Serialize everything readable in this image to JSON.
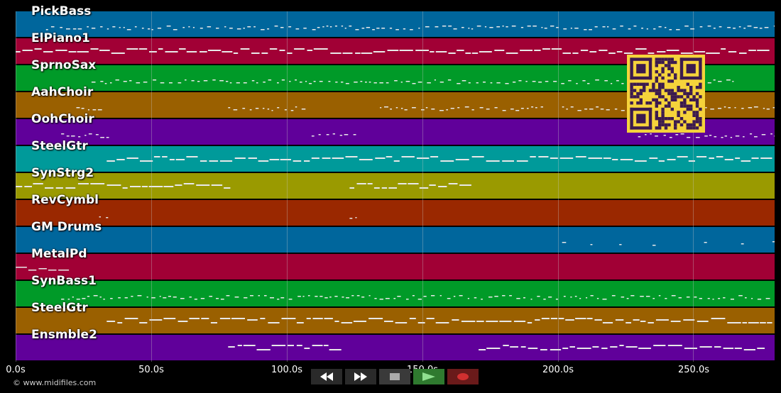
{
  "tracks": [
    {
      "name": "PickBass",
      "color": "#00669c"
    },
    {
      "name": "ElPiano1",
      "color": "#a10035"
    },
    {
      "name": "SprnoSax",
      "color": "#009a28"
    },
    {
      "name": "AahChoir",
      "color": "#9a6000"
    },
    {
      "name": "OohChoir",
      "color": "#60009a"
    },
    {
      "name": "SteelGtr",
      "color": "#009a9a"
    },
    {
      "name": "SynStrg2",
      "color": "#9a9a00"
    },
    {
      "name": "RevCymbl",
      "color": "#9a2800"
    },
    {
      "name": "GM Drums",
      "color": "#00669c"
    },
    {
      "name": "MetalPd",
      "color": "#a10035"
    },
    {
      "name": "SynBass1",
      "color": "#009a28"
    },
    {
      "name": "SteelGtr",
      "color": "#9a6000"
    },
    {
      "name": "Ensmble2",
      "color": "#60009a"
    }
  ],
  "timeline": {
    "ticks": [
      "0.0s",
      "50.0s",
      "100.0s",
      "150.0s",
      "200.0s",
      "250.0s"
    ],
    "tick_values": [
      0,
      50,
      100,
      150,
      200,
      250
    ],
    "max_seconds": 280
  },
  "footer": {
    "copyright": "© www.midifiles.com"
  },
  "transport": [
    {
      "icon": "rewind-icon",
      "color": "#2a2a2a"
    },
    {
      "icon": "fast-forward-icon",
      "color": "#2a2a2a"
    },
    {
      "icon": "stop-icon",
      "color": "#3a3a3a"
    },
    {
      "icon": "play-icon",
      "color": "#2f7a2f"
    },
    {
      "icon": "record-icon",
      "color": "#6a1a1a"
    }
  ],
  "colors": {
    "background": "#000000",
    "qr": "#f5d33b",
    "qr_dark": "#3b1a4f",
    "grid": "#c8c8c8"
  }
}
